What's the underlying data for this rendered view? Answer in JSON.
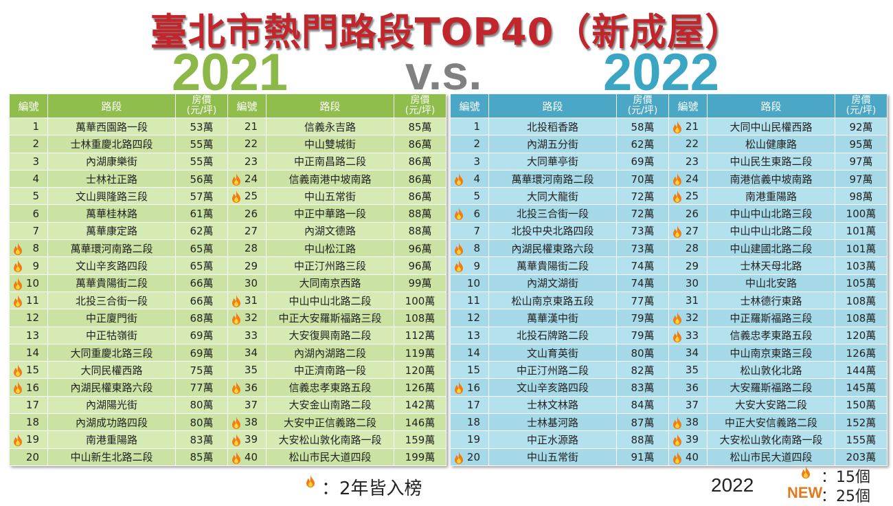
{
  "header": {
    "title": "臺北市熱門路段TOP40（新成屋）",
    "year_left": "2021",
    "versus": "v.s.",
    "year_right": "2022"
  },
  "tables": [
    {
      "columns": {
        "no": "編號",
        "road": "路段",
        "price": [
          "房價",
          "(元/坪)"
        ]
      },
      "rows": [
        {
          "no": 1,
          "road": "萬華西園路一段",
          "price": "53萬",
          "both_years": false
        },
        {
          "no": 2,
          "road": "士林重慶北路四段",
          "price": "55萬",
          "both_years": false
        },
        {
          "no": 3,
          "road": "內湖康樂街",
          "price": "55萬",
          "both_years": false
        },
        {
          "no": 4,
          "road": "士林社正路",
          "price": "56萬",
          "both_years": false
        },
        {
          "no": 5,
          "road": "文山興隆路三段",
          "price": "57萬",
          "both_years": false
        },
        {
          "no": 6,
          "road": "萬華桂林路",
          "price": "61萬",
          "both_years": false
        },
        {
          "no": 7,
          "road": "萬華康定路",
          "price": "62萬",
          "both_years": false
        },
        {
          "no": 8,
          "road": "萬華環河南路二段",
          "price": "65萬",
          "both_years": true
        },
        {
          "no": 9,
          "road": "文山辛亥路四段",
          "price": "65萬",
          "both_years": true
        },
        {
          "no": 10,
          "road": "萬華貴陽街二段",
          "price": "66萬",
          "both_years": true
        },
        {
          "no": 11,
          "road": "北投三合街一段",
          "price": "66萬",
          "both_years": true
        },
        {
          "no": 12,
          "road": "中正廈門街",
          "price": "68萬",
          "both_years": false
        },
        {
          "no": 13,
          "road": "中正牯嶺街",
          "price": "69萬",
          "both_years": false
        },
        {
          "no": 14,
          "road": "大同重慶北路三段",
          "price": "69萬",
          "both_years": false
        },
        {
          "no": 15,
          "road": "大同民權西路",
          "price": "75萬",
          "both_years": true
        },
        {
          "no": 16,
          "road": "內湖民權東路六段",
          "price": "77萬",
          "both_years": true
        },
        {
          "no": 17,
          "road": "內湖陽光街",
          "price": "80萬",
          "both_years": false
        },
        {
          "no": 18,
          "road": "內湖成功路四段",
          "price": "80萬",
          "both_years": false
        },
        {
          "no": 19,
          "road": "南港重陽路",
          "price": "83萬",
          "both_years": true
        },
        {
          "no": 20,
          "road": "中山新生北路二段",
          "price": "85萬",
          "both_years": false
        },
        {
          "no": 21,
          "road": "信義永吉路",
          "price": "85萬",
          "both_years": false
        },
        {
          "no": 22,
          "road": "中山雙城街",
          "price": "86萬",
          "both_years": false
        },
        {
          "no": 23,
          "road": "中正南昌路二段",
          "price": "86萬",
          "both_years": false
        },
        {
          "no": 24,
          "road": "信義南港中坡南路",
          "price": "86萬",
          "both_years": true
        },
        {
          "no": 25,
          "road": "中山五常街",
          "price": "86萬",
          "both_years": true
        },
        {
          "no": 26,
          "road": "中正中華路一段",
          "price": "88萬",
          "both_years": false
        },
        {
          "no": 27,
          "road": "內湖文德路",
          "price": "88萬",
          "both_years": false
        },
        {
          "no": 28,
          "road": "中山松江路",
          "price": "96萬",
          "both_years": false
        },
        {
          "no": 29,
          "road": "中正汀州路三段",
          "price": "96萬",
          "both_years": false
        },
        {
          "no": 30,
          "road": "大同南京西路",
          "price": "99萬",
          "both_years": false
        },
        {
          "no": 31,
          "road": "中山中山北路二段",
          "price": "100萬",
          "both_years": true
        },
        {
          "no": 32,
          "road": "中正大安羅斯福路三段",
          "price": "108萬",
          "both_years": true
        },
        {
          "no": 33,
          "road": "大安復興南路二段",
          "price": "112萬",
          "both_years": false
        },
        {
          "no": 34,
          "road": "內湖內湖路二段",
          "price": "119萬",
          "both_years": false
        },
        {
          "no": 35,
          "road": "中正濟南路一段",
          "price": "120萬",
          "both_years": false
        },
        {
          "no": 36,
          "road": "信義忠孝東路五段",
          "price": "126萬",
          "both_years": true
        },
        {
          "no": 37,
          "road": "大安金山南路二段",
          "price": "142萬",
          "both_years": false
        },
        {
          "no": 38,
          "road": "大安中正信義路二段",
          "price": "146萬",
          "both_years": true
        },
        {
          "no": 39,
          "road": "大安松山敦化南路一段",
          "price": "159萬",
          "both_years": true
        },
        {
          "no": 40,
          "road": "松山市民大道四段",
          "price": "199萬",
          "both_years": true
        }
      ]
    },
    {
      "columns": {
        "no": "編號",
        "road": "路段",
        "price": [
          "房價",
          "(元/坪)"
        ]
      },
      "rows": [
        {
          "no": 1,
          "road": "北投稻香路",
          "price": "58萬",
          "both_years": false
        },
        {
          "no": 2,
          "road": "內湖五分街",
          "price": "62萬",
          "both_years": false
        },
        {
          "no": 3,
          "road": "大同華亭街",
          "price": "69萬",
          "both_years": false
        },
        {
          "no": 4,
          "road": "萬華環河南路二段",
          "price": "70萬",
          "both_years": true
        },
        {
          "no": 5,
          "road": "大同大龍街",
          "price": "72萬",
          "both_years": false
        },
        {
          "no": 6,
          "road": "北投三合街一段",
          "price": "72萬",
          "both_years": true
        },
        {
          "no": 7,
          "road": "北投中央北路四段",
          "price": "73萬",
          "both_years": false
        },
        {
          "no": 8,
          "road": "內湖民權東路六段",
          "price": "73萬",
          "both_years": true
        },
        {
          "no": 9,
          "road": "萬華貴陽街二段",
          "price": "74萬",
          "both_years": true
        },
        {
          "no": 10,
          "road": "內湖文湖街",
          "price": "74萬",
          "both_years": false
        },
        {
          "no": 11,
          "road": "松山南京東路五段",
          "price": "77萬",
          "both_years": false
        },
        {
          "no": 12,
          "road": "萬華漢中街",
          "price": "79萬",
          "both_years": false
        },
        {
          "no": 13,
          "road": "北投石牌路二段",
          "price": "79萬",
          "both_years": false
        },
        {
          "no": 14,
          "road": "文山育英街",
          "price": "80萬",
          "both_years": false
        },
        {
          "no": 15,
          "road": "中正汀州路二段",
          "price": "82萬",
          "both_years": false
        },
        {
          "no": 16,
          "road": "文山辛亥路四段",
          "price": "83萬",
          "both_years": true
        },
        {
          "no": 17,
          "road": "士林文林路",
          "price": "84萬",
          "both_years": false
        },
        {
          "no": 18,
          "road": "士林基河路",
          "price": "87萬",
          "both_years": false
        },
        {
          "no": 19,
          "road": "中正水源路",
          "price": "88萬",
          "both_years": false
        },
        {
          "no": 20,
          "road": "中山五常街",
          "price": "91萬",
          "both_years": true
        },
        {
          "no": 21,
          "road": "大同中山民權西路",
          "price": "92萬",
          "both_years": true
        },
        {
          "no": 22,
          "road": "松山健康路",
          "price": "95萬",
          "both_years": false
        },
        {
          "no": 23,
          "road": "中山民生東路二段",
          "price": "97萬",
          "both_years": false
        },
        {
          "no": 24,
          "road": "南港信義中坡南路",
          "price": "97萬",
          "both_years": true
        },
        {
          "no": 25,
          "road": "南港重陽路",
          "price": "98萬",
          "both_years": true
        },
        {
          "no": 26,
          "road": "中山中山北路三段",
          "price": "100萬",
          "both_years": false
        },
        {
          "no": 27,
          "road": "中山中山北路二段",
          "price": "101萬",
          "both_years": true
        },
        {
          "no": 28,
          "road": "中山建國北路二段",
          "price": "101萬",
          "both_years": false
        },
        {
          "no": 29,
          "road": "士林天母北路",
          "price": "103萬",
          "both_years": false
        },
        {
          "no": 30,
          "road": "中山北安路",
          "price": "105萬",
          "both_years": false
        },
        {
          "no": 31,
          "road": "士林德行東路",
          "price": "108萬",
          "both_years": false
        },
        {
          "no": 32,
          "road": "中正羅斯福路三段",
          "price": "108萬",
          "both_years": true
        },
        {
          "no": 33,
          "road": "信義忠孝東路五段",
          "price": "120萬",
          "both_years": true
        },
        {
          "no": 34,
          "road": "中山南京東路三段",
          "price": "126萬",
          "both_years": false
        },
        {
          "no": 35,
          "road": "松山敦化北路",
          "price": "144萬",
          "both_years": false
        },
        {
          "no": 36,
          "road": "大安羅斯福路二段",
          "price": "145萬",
          "both_years": false
        },
        {
          "no": 37,
          "road": "大安大安路二段",
          "price": "150萬",
          "both_years": false
        },
        {
          "no": 38,
          "road": "中正大安信義路二段",
          "price": "152萬",
          "both_years": true
        },
        {
          "no": 39,
          "road": "大安松山敦化南路一段",
          "price": "155萬",
          "both_years": true
        },
        {
          "no": 40,
          "road": "松山市民大道四段",
          "price": "203萬",
          "both_years": true
        }
      ]
    }
  ],
  "footer": {
    "legend_text": "：2年皆入榜",
    "year": "2022",
    "both_count": "：15個",
    "new_label": "NEW",
    "new_count": "：25個"
  }
}
